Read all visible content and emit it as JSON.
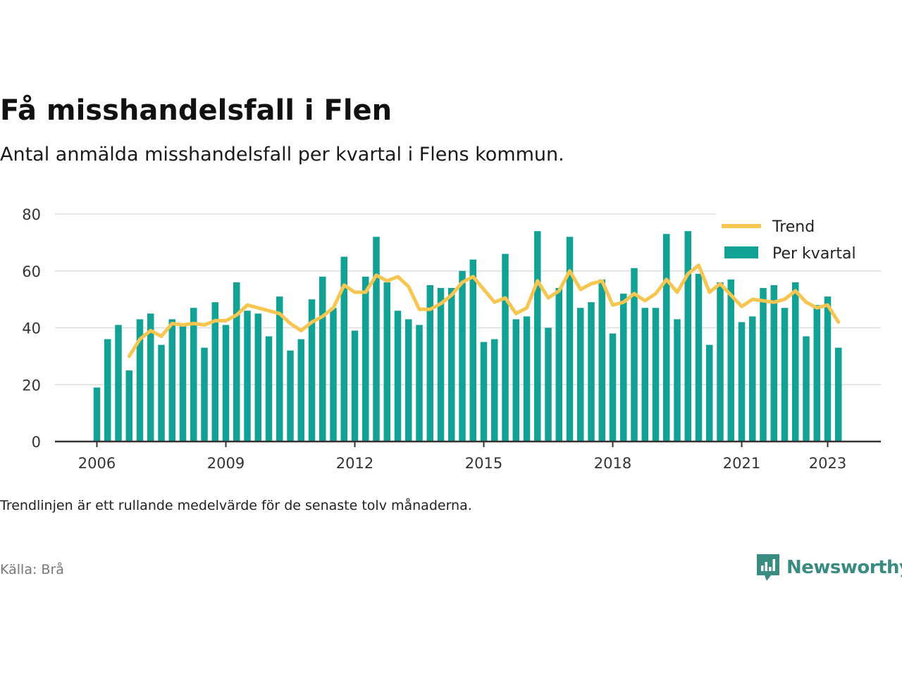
{
  "title": "Få misshandelsfall i Flen",
  "subtitle": "Antal anmälda misshandelsfall per kvartal i Flens kommun.",
  "note": "Trendlinjen är ett rullande medelvärde för de senaste tolv månaderna.",
  "source": "Källa: Brå",
  "brand": {
    "name": "Newsworthy",
    "icon": "newsworthy-logo-icon",
    "color": "#3a8b82"
  },
  "colors": {
    "bars": "#12a195",
    "trend": "#f7c650",
    "grid": "#dddddd",
    "axis": "#333333"
  },
  "chart_data": {
    "type": "bar",
    "x_unit": "quarter",
    "start": "2006 Q1",
    "xticks": [
      2006,
      2009,
      2012,
      2015,
      2018,
      2021,
      2023
    ],
    "yticks": [
      0,
      20,
      40,
      60,
      80
    ],
    "ylim": [
      0,
      80
    ],
    "grid": true,
    "legend_position": "top-right",
    "series": [
      {
        "name": "Trend",
        "type": "line",
        "values": [
          null,
          null,
          null,
          30,
          36,
          39,
          37,
          41.5,
          41,
          41.5,
          41,
          42.5,
          42.5,
          44.5,
          48,
          47,
          46,
          45,
          41.5,
          39,
          42,
          44,
          47,
          55,
          52.5,
          52.5,
          58.5,
          56.5,
          58,
          54.5,
          46.5,
          46.5,
          48.5,
          51.5,
          56,
          58,
          53.5,
          49,
          50.5,
          45,
          47,
          56.5,
          50.5,
          53,
          60,
          53.5,
          55.5,
          56.5,
          48,
          49,
          52,
          49.5,
          52,
          57,
          52.5,
          59,
          62,
          52.5,
          55.5,
          51.5,
          47.5,
          50,
          49.5,
          49,
          50,
          53,
          49,
          47,
          48,
          42
        ]
      },
      {
        "name": "Per kvartal",
        "type": "bar",
        "values": [
          19,
          36,
          41,
          25,
          43,
          45,
          34,
          43,
          41,
          47,
          33,
          49,
          41,
          56,
          46,
          45,
          37,
          51,
          32,
          36,
          50,
          58,
          47,
          65,
          39,
          58,
          72,
          56,
          46,
          43,
          41,
          55,
          54,
          54,
          60,
          64,
          35,
          36,
          66,
          43,
          44,
          74,
          40,
          54,
          72,
          47,
          49,
          57,
          38,
          52,
          61,
          47,
          47,
          73,
          43,
          74,
          59,
          34,
          56,
          57,
          42,
          44,
          54,
          55,
          47,
          56,
          37,
          48,
          51,
          33
        ]
      }
    ]
  }
}
